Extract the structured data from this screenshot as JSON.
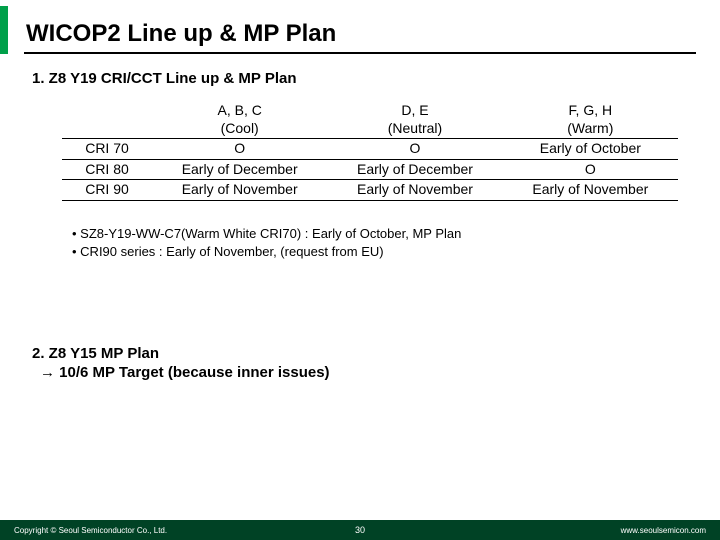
{
  "colors": {
    "accent": "#00a04a",
    "footer_bg": "#004225",
    "footer_text": "#ffffff"
  },
  "title": "WICOP2 Line up & MP Plan",
  "section1": {
    "heading": "1.  Z8 Y19 CRI/CCT Line up & MP Plan",
    "table": {
      "headers": [
        {
          "l1": "A, B, C",
          "l2": "(Cool)"
        },
        {
          "l1": "D, E",
          "l2": "(Neutral)"
        },
        {
          "l1": "F, G, H",
          "l2": "(Warm)"
        }
      ],
      "rows": [
        {
          "label": "CRI 70",
          "c1": "O",
          "c2": "O",
          "c3": "Early of October"
        },
        {
          "label": "CRI 80",
          "c1": "Early of December",
          "c2": "Early of December",
          "c3": "O"
        },
        {
          "label": "CRI 90",
          "c1": "Early of November",
          "c2": "Early of November",
          "c3": "Early of November"
        }
      ]
    },
    "notes": [
      "SZ8-Y19-WW-C7(Warm White CRI70) : Early of October, MP Plan",
      "CRI90 series : Early of November, (request from EU)"
    ]
  },
  "section2": {
    "heading": "2.  Z8 Y15 MP Plan",
    "subline": "→ 10/6 MP Target (because inner issues)"
  },
  "footer": {
    "left": "Copyright © Seoul Semiconductor Co., Ltd.",
    "page": "30",
    "right": "www.seoulsemicon.com"
  }
}
